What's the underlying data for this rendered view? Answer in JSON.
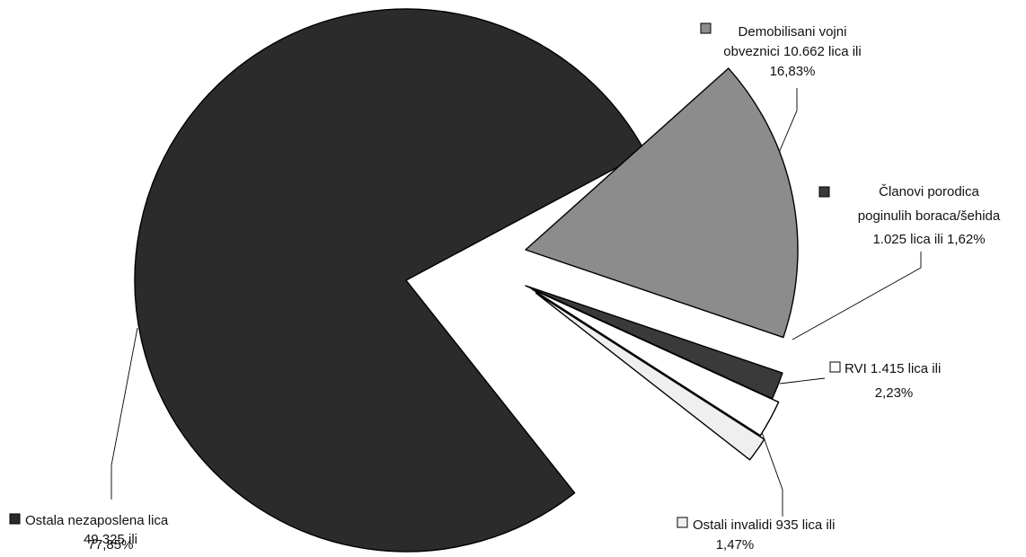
{
  "chart_data": {
    "type": "pie",
    "title": "",
    "exploded": true,
    "legend_placement": "callout-labels",
    "slices": [
      {
        "key": "ostala",
        "value": 49325,
        "percent": 77.85,
        "color": "#2b2b2b",
        "label_lines": [
          "Ostala nezaposlena lica",
          "49.325  ili",
          "77,85%"
        ]
      },
      {
        "key": "demobilisani",
        "value": 10662,
        "percent": 16.83,
        "color": "#8c8c8c",
        "label_lines": [
          "Demobilisani vojni",
          "obveznici 10.662 lica ili",
          "16,83%"
        ]
      },
      {
        "key": "clanovi",
        "value": 1025,
        "percent": 1.62,
        "color": "#3a3a3a",
        "label_lines": [
          "Članovi porodica",
          "poginulih boraca/šehida",
          "1.025 lica ili 1,62%"
        ]
      },
      {
        "key": "rvi",
        "value": 1415,
        "percent": 2.23,
        "color": "#ffffff",
        "label_lines": [
          "RVI 1.415 lica ili",
          "2,23%"
        ]
      },
      {
        "key": "invalidi",
        "value": 935,
        "percent": 1.47,
        "color": "#efefef",
        "label_lines": [
          "Ostali invalidi 935 lica ili",
          "1,47%"
        ]
      }
    ]
  }
}
